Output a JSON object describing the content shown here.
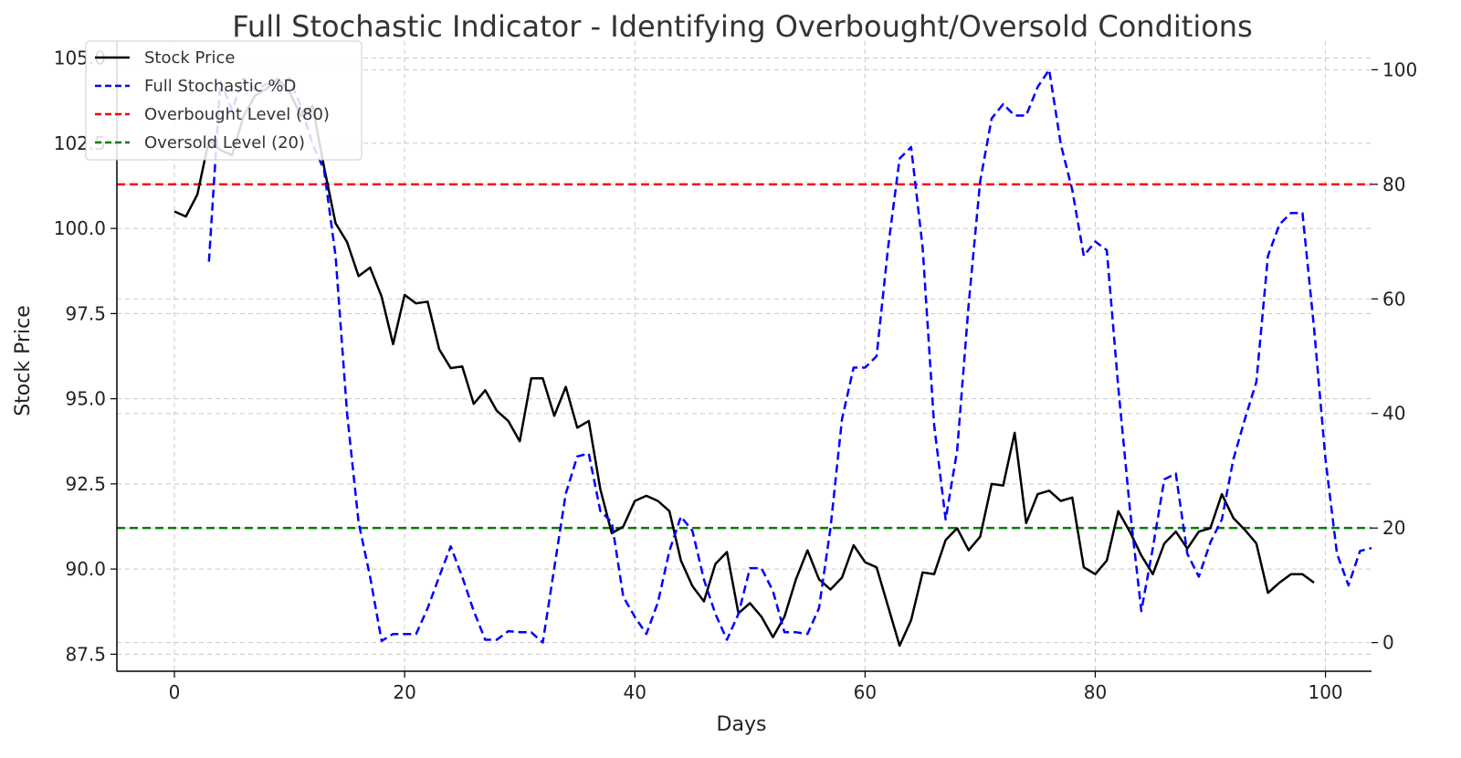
{
  "chart_data": {
    "type": "line",
    "title": "Full Stochastic Indicator - Identifying Overbought/Oversold Conditions",
    "xlabel": "Days",
    "ylabel": "Stock Price",
    "xlim": [
      -5,
      104
    ],
    "ylim": [
      87.0,
      105.5
    ],
    "y2lim": [
      -5,
      105
    ],
    "xticks": [
      0,
      20,
      40,
      60,
      80,
      100
    ],
    "yticks": [
      87.5,
      90.0,
      92.5,
      95.0,
      97.5,
      100.0,
      102.5,
      105.0
    ],
    "y2ticks": [
      0,
      20,
      40,
      60,
      80,
      100
    ],
    "grid": true,
    "legend_placement": "upper-left",
    "colors": {
      "price": "#000000",
      "stoch_d": "#0000ff",
      "overbought": "#ff0000",
      "oversold": "#008000",
      "grid": "#c8c8c8"
    },
    "series": [
      {
        "name": "Stock Price",
        "axis": "left",
        "style": "solid",
        "x_start": 0,
        "values": [
          100.5,
          100.35,
          101.0,
          102.6,
          102.3,
          102.15,
          103.3,
          103.9,
          104.1,
          104.4,
          104.0,
          103.3,
          103.6,
          101.8,
          100.15,
          99.6,
          98.6,
          98.85,
          98.0,
          96.6,
          98.05,
          97.8,
          97.85,
          96.45,
          95.9,
          95.95,
          94.85,
          95.25,
          94.65,
          94.35,
          93.75,
          95.6,
          95.6,
          94.5,
          95.35,
          94.15,
          94.35,
          92.35,
          91.05,
          91.25,
          92.0,
          92.15,
          92.0,
          91.7,
          90.25,
          89.5,
          89.05,
          90.15,
          90.5,
          88.7,
          89.0,
          88.6,
          88.0,
          88.6,
          89.7,
          90.55,
          89.7,
          89.4,
          89.75,
          90.7,
          90.2,
          90.05,
          88.9,
          87.75,
          88.5,
          89.9,
          89.85,
          90.85,
          91.2,
          90.55,
          90.95,
          92.5,
          92.45,
          94.0,
          91.35,
          92.2,
          92.3,
          92.0,
          92.1,
          90.05,
          89.85,
          90.25,
          91.7,
          91.1,
          90.4,
          89.85,
          90.75,
          91.1,
          90.6,
          91.1,
          91.2,
          92.2,
          91.5,
          91.15,
          90.75,
          89.3,
          89.6,
          89.85,
          89.85,
          89.6
        ]
      },
      {
        "name": "Full Stochastic %D",
        "axis": "right",
        "style": "dashed",
        "x_start": 3,
        "values": [
          66.5,
          98.0,
          93.0,
          98.5,
          96.5,
          97.5,
          97.5,
          98.5,
          93.5,
          87.0,
          82.5,
          67.5,
          40.0,
          21.0,
          11.5,
          0.3,
          1.5,
          1.5,
          1.5,
          6.0,
          11.5,
          16.8,
          11.5,
          5.5,
          0.5,
          0.5,
          2.0,
          1.8,
          1.8,
          0.0,
          13.0,
          26.0,
          32.5,
          33.0,
          23.0,
          21.0,
          8.0,
          4.5,
          1.5,
          7.0,
          16.0,
          22.0,
          19.5,
          11.0,
          5.0,
          0.5,
          5.0,
          13.0,
          13.0,
          9.0,
          1.8,
          1.8,
          1.5,
          6.0,
          20.0,
          39.0,
          48.0,
          48.0,
          50.0,
          69.0,
          84.5,
          86.5,
          69.0,
          38.0,
          21.5,
          33.5,
          59.0,
          80.5,
          91.5,
          94.0,
          92.0,
          92.0,
          97.0,
          100.0,
          87.0,
          79.0,
          67.5,
          70.0,
          68.5,
          44.5,
          23.5,
          5.5,
          16.5,
          28.5,
          29.5,
          15.5,
          11.5,
          17.5,
          21.5,
          32.0,
          39.0,
          45.5,
          67.5,
          73.0,
          75.0,
          75.0,
          55.0,
          32.0,
          15.5,
          10.0,
          16.0,
          16.5
        ]
      }
    ],
    "reference_lines": [
      {
        "name": "Overbought Level (80)",
        "value": 80,
        "axis": "right"
      },
      {
        "name": "Oversold Level (20)",
        "value": 20,
        "axis": "right"
      }
    ],
    "legend": [
      {
        "label": "Stock Price",
        "color": "#000000",
        "style": "solid"
      },
      {
        "label": "Full Stochastic %D",
        "color": "#0000ff",
        "style": "dashed"
      },
      {
        "label": "Overbought Level (80)",
        "color": "#ff0000",
        "style": "dashed"
      },
      {
        "label": "Oversold Level (20)",
        "color": "#008000",
        "style": "dashed"
      }
    ]
  }
}
